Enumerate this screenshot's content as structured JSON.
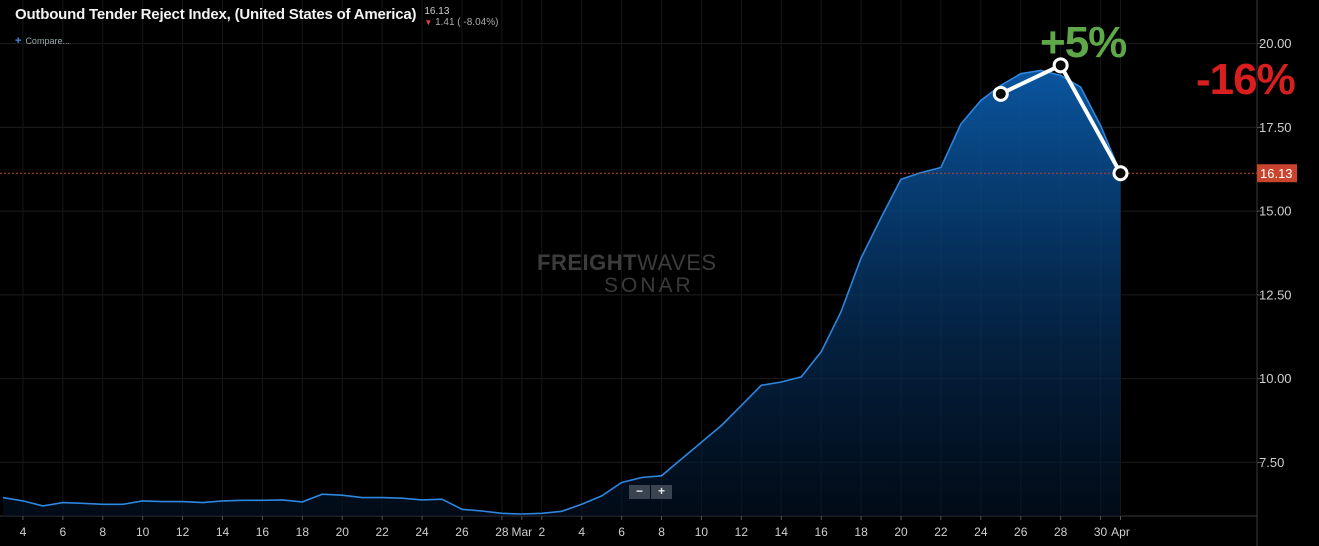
{
  "header": {
    "title": "Outbound Tender Reject Index, (United States of America)",
    "current_value": "16.13",
    "change_arrow": "▼",
    "change_text": "1.41 ( -8.04%)"
  },
  "compare": {
    "icon": "plus-icon",
    "label": "Compare..."
  },
  "zoom": {
    "minus_label": "−",
    "plus_label": "+"
  },
  "watermark": {
    "brand_bold": "FREIGHT",
    "brand_light": "WAVES",
    "sub": "SONAR"
  },
  "annotations": {
    "increase": "+5%",
    "decrease": "-16%"
  },
  "price_tag": "16.13",
  "colors": {
    "background": "#000000",
    "line": "#2e86de",
    "fill_top": "#0a5aa8",
    "price_tag": "#c8442c",
    "up": "#5fa84a",
    "down": "#d81e1e"
  },
  "chart_data": {
    "type": "area",
    "title": "Outbound Tender Reject Index, (United States of America)",
    "ylim": [
      5.9,
      21.3
    ],
    "xlim": [
      1,
      63
    ],
    "y_ticks": [
      7.5,
      10,
      12.5,
      15,
      17.5,
      20
    ],
    "y_tick_labels": [
      "7.50",
      "10.00",
      "12.50",
      "15.00",
      "17.50",
      "20.00"
    ],
    "x_ticks": [
      {
        "day": 2,
        "label": "4"
      },
      {
        "day": 4,
        "label": "6"
      },
      {
        "day": 6,
        "label": "8"
      },
      {
        "day": 8,
        "label": "10"
      },
      {
        "day": 10,
        "label": "12"
      },
      {
        "day": 12,
        "label": "14"
      },
      {
        "day": 14,
        "label": "16"
      },
      {
        "day": 16,
        "label": "18"
      },
      {
        "day": 18,
        "label": "20"
      },
      {
        "day": 20,
        "label": "22"
      },
      {
        "day": 22,
        "label": "24"
      },
      {
        "day": 24,
        "label": "26"
      },
      {
        "day": 26,
        "label": "28"
      },
      {
        "day": 27,
        "label": "Mar"
      },
      {
        "day": 28,
        "label": "2"
      },
      {
        "day": 30,
        "label": "4"
      },
      {
        "day": 32,
        "label": "6"
      },
      {
        "day": 34,
        "label": "8"
      },
      {
        "day": 36,
        "label": "10"
      },
      {
        "day": 38,
        "label": "12"
      },
      {
        "day": 40,
        "label": "14"
      },
      {
        "day": 42,
        "label": "16"
      },
      {
        "day": 44,
        "label": "18"
      },
      {
        "day": 46,
        "label": "20"
      },
      {
        "day": 48,
        "label": "22"
      },
      {
        "day": 50,
        "label": "24"
      },
      {
        "day": 52,
        "label": "26"
      },
      {
        "day": 54,
        "label": "28"
      },
      {
        "day": 56,
        "label": "30"
      },
      {
        "day": 57,
        "label": "Apr"
      }
    ],
    "series": [
      {
        "x": [
          1,
          2,
          3,
          4,
          5,
          6,
          7,
          8,
          9,
          10,
          11,
          12,
          13,
          14,
          15,
          16,
          17,
          18,
          19,
          20,
          21,
          22,
          23,
          24,
          25,
          26,
          27,
          28,
          29,
          30,
          31,
          32,
          33,
          34,
          35,
          36,
          37,
          38,
          39,
          40,
          41,
          42,
          43,
          44,
          45,
          46,
          47,
          48,
          49,
          50,
          51,
          52,
          53,
          54,
          55,
          56,
          57
        ],
        "y": [
          6.45,
          6.35,
          6.2,
          6.3,
          6.28,
          6.25,
          6.25,
          6.35,
          6.33,
          6.33,
          6.3,
          6.35,
          6.37,
          6.37,
          6.38,
          6.32,
          6.55,
          6.52,
          6.45,
          6.45,
          6.43,
          6.38,
          6.4,
          6.1,
          6.05,
          5.98,
          5.96,
          5.98,
          6.04,
          6.25,
          6.5,
          6.9,
          7.05,
          7.1,
          7.6,
          8.1,
          8.6,
          9.2,
          9.8,
          9.9,
          10.05,
          10.8,
          12.0,
          13.6,
          14.8,
          15.95,
          16.15,
          16.3,
          17.6,
          18.3,
          18.75,
          19.1,
          19.2,
          19.05,
          18.7,
          17.55,
          16.13
        ]
      }
    ],
    "highlight_points": [
      {
        "x": 51,
        "y": 18.5
      },
      {
        "x": 54,
        "y": 19.35
      },
      {
        "x": 57,
        "y": 16.13
      }
    ],
    "last_value": 16.13
  }
}
